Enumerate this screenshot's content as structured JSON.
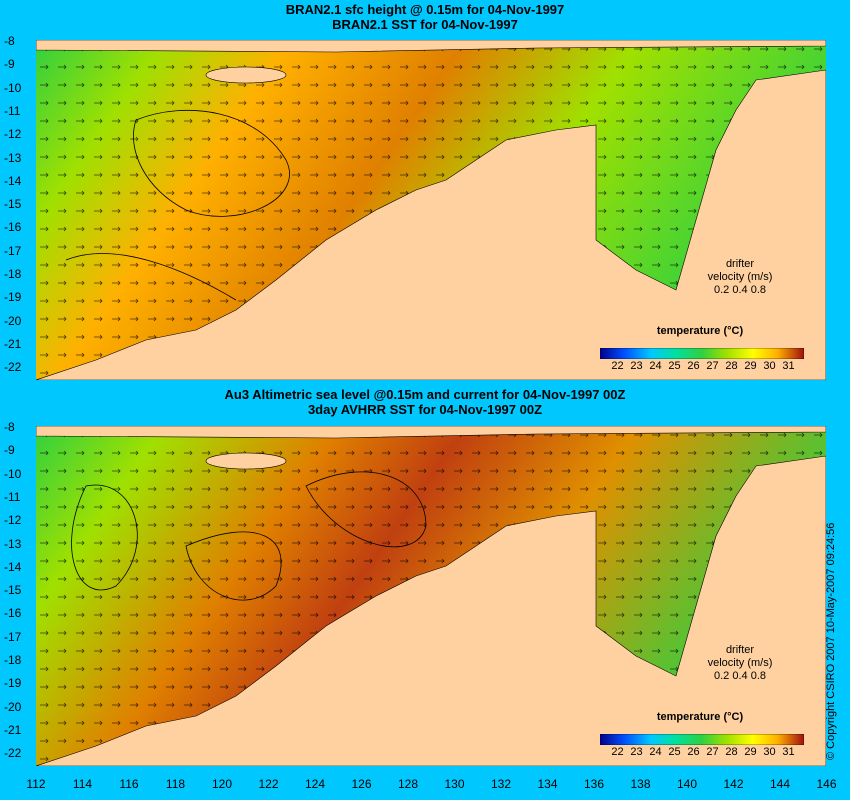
{
  "top": {
    "title_line1": "BRAN2.1 sfc height @ 0.15m for 04-Nov-1997",
    "title_line2": "BRAN2.1 SST for 04-Nov-1997"
  },
  "bottom": {
    "title_line1": "Au3 Altimetric sea level  @0.15m and current for 04-Nov-1997 00Z",
    "title_line2": "3day AVHRR SST for 04-Nov-1997 00Z"
  },
  "y_ticks": [
    "-8",
    "-9",
    "-10",
    "-11",
    "-12",
    "-13",
    "-14",
    "-15",
    "-16",
    "-17",
    "-18",
    "-19",
    "-20",
    "-21",
    "-22"
  ],
  "x_ticks": [
    "112",
    "114",
    "116",
    "118",
    "120",
    "122",
    "124",
    "126",
    "128",
    "130",
    "132",
    "134",
    "136",
    "138",
    "140",
    "142",
    "144",
    "146"
  ],
  "colorbar": {
    "title": "temperature (°C)",
    "ticks": [
      "22",
      "23",
      "24",
      "25",
      "26",
      "27",
      "28",
      "29",
      "30",
      "31"
    ],
    "colors": [
      "#00008c",
      "#0050ff",
      "#00c8ff",
      "#00e0a0",
      "#30d040",
      "#a0e000",
      "#ffff00",
      "#ffb000",
      "#e06000",
      "#a01010"
    ]
  },
  "drifter": {
    "line1": "drifter",
    "line2": "velocity (m/s)",
    "line3": "0.2  0.4  0.8"
  },
  "copyright": "© Copyright CSIRO 2007   10-May-2007 09:24:56",
  "colors": {
    "background": "#00c8ff",
    "land": "#ffd1a0"
  }
}
